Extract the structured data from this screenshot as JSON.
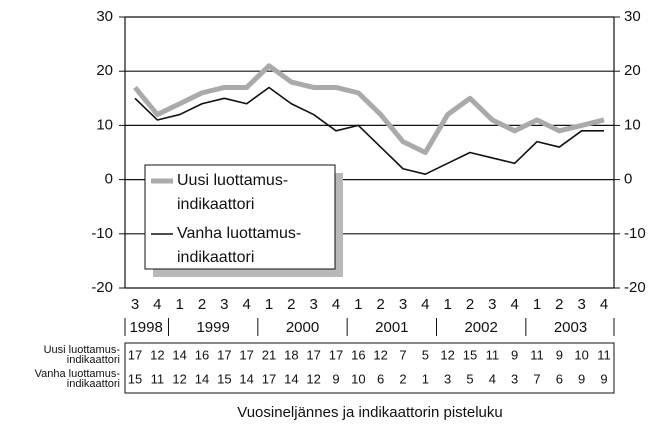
{
  "chart_data": {
    "type": "line",
    "x_label": "Vuosineljännes ja indikaattorin pisteluku",
    "categories": [
      "3",
      "4",
      "1",
      "2",
      "3",
      "4",
      "1",
      "2",
      "3",
      "4",
      "1",
      "2",
      "3",
      "4",
      "1",
      "2",
      "3",
      "4",
      "1",
      "2",
      "3",
      "4"
    ],
    "years": [
      "1998",
      "1999",
      "2000",
      "2001",
      "2002",
      "2003"
    ],
    "series": [
      {
        "name": "Uusi luottamus-indikaattori",
        "color": "#aaaaaa",
        "values": [
          17,
          12,
          14,
          16,
          17,
          17,
          21,
          18,
          17,
          17,
          16,
          12,
          7,
          5,
          12,
          15,
          11,
          9,
          11,
          9,
          10,
          11
        ]
      },
      {
        "name": "Vanha luottamus-indikaattori",
        "color": "#111111",
        "values": [
          15,
          11,
          12,
          14,
          15,
          14,
          17,
          14,
          12,
          9,
          10,
          6,
          2,
          1,
          3,
          5,
          4,
          3,
          7,
          6,
          9,
          9
        ]
      }
    ],
    "ylim": [
      -20,
      30
    ],
    "yticks": [
      30,
      20,
      10,
      0,
      -10,
      -20
    ],
    "grid": true
  }
}
